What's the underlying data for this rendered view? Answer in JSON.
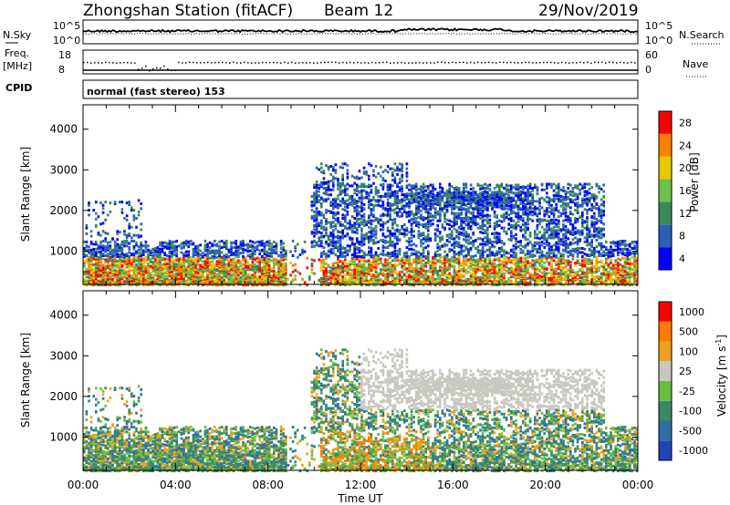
{
  "header": {
    "station": "Zhongshan Station (fitACF)",
    "beam": "Beam 12",
    "date": "29/Nov/2019"
  },
  "strip_panels": {
    "nsky": {
      "left_label": "N.Sky",
      "left_ticks": [
        "10^5",
        "10^0"
      ],
      "right_ticks": [
        "10^5",
        "10^0"
      ],
      "right_label": "N.Search"
    },
    "freq": {
      "left_label_1": "Freq.",
      "left_label_2": "[MHz]",
      "left_ticks": [
        "18",
        "8"
      ],
      "right_ticks": [
        "60",
        "0"
      ],
      "right_label": "Nave"
    },
    "cpid": {
      "label": "CPID",
      "text": "normal (fast stereo) 153"
    }
  },
  "chart_data": [
    {
      "type": "heatmap",
      "parameter": "power",
      "ylabel": "Slant Range [km]",
      "yticks": [
        1000,
        2000,
        3000,
        4000
      ],
      "ylim": [
        180,
        4600
      ],
      "xlim_hours": [
        0,
        24
      ],
      "xticks": [
        "00:00",
        "04:00",
        "08:00",
        "12:00",
        "16:00",
        "20:00",
        "00:00"
      ],
      "colorbar": {
        "label": "Power [dB]",
        "ticks": [
          "28",
          "24",
          "20",
          "16",
          "12",
          "8",
          "4"
        ],
        "colors": [
          "#0000ff",
          "#2a5fb8",
          "#3b8a5a",
          "#6ec14b",
          "#e6c800",
          "#ff8000",
          "#ff0000"
        ]
      }
    },
    {
      "type": "heatmap",
      "parameter": "velocity",
      "ylabel": "Slant Range [km]",
      "yticks": [
        1000,
        2000,
        3000,
        4000
      ],
      "ylim": [
        180,
        4600
      ],
      "xlim_hours": [
        0,
        24
      ],
      "xlabel": "Time UT",
      "xticks": [
        "00:00",
        "04:00",
        "08:00",
        "12:00",
        "16:00",
        "20:00",
        "00:00"
      ],
      "colorbar": {
        "label": "Velocity [m s",
        "label_sup": "-1",
        "label_end": "]",
        "ticks": [
          "1000",
          "500",
          "100",
          "25",
          "-25",
          "-100",
          "-500",
          "-1000"
        ],
        "colors": [
          "#2244bb",
          "#2f6fa8",
          "#3a8a66",
          "#66c040",
          "#c8c8c0",
          "#f0a020",
          "#ff7a00",
          "#ff0000"
        ]
      }
    }
  ]
}
